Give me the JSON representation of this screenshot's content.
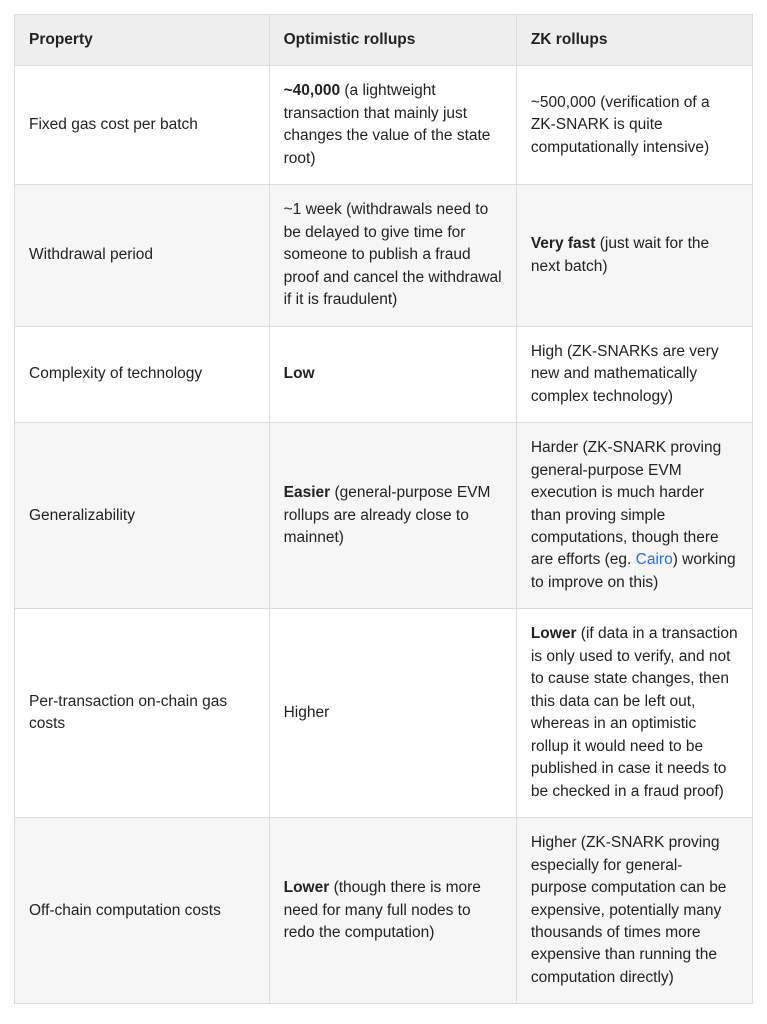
{
  "table": {
    "type": "table",
    "columns": [
      {
        "key": "property",
        "label": "Property",
        "width_pct": 34.5
      },
      {
        "key": "optimistic",
        "label": "Optimistic rollups",
        "width_pct": 33.5
      },
      {
        "key": "zk",
        "label": "ZK rollups",
        "width_pct": 32
      }
    ],
    "header_bg": "#eeeeee",
    "row_bg_odd": "#ffffff",
    "row_bg_even": "#f6f6f6",
    "border_color": "#dcdcdc",
    "text_color": "#222222",
    "link_color": "#1a73e8",
    "font_size_pt": 12,
    "rows": [
      {
        "property": "Fixed gas cost per batch",
        "optimistic_bold": "~40,000",
        "optimistic_rest": " (a lightweight transaction that mainly just changes the value of the state root)",
        "zk_bold": "",
        "zk_rest": "~500,000 (verification of a ZK-SNARK is quite computationally intensive)"
      },
      {
        "property": "Withdrawal period",
        "optimistic_bold": "",
        "optimistic_rest": "~1 week (withdrawals need to be delayed to give time for someone to publish a fraud proof and cancel the withdrawal if it is fraudulent)",
        "zk_bold": "Very fast",
        "zk_rest": " (just wait for the next batch)"
      },
      {
        "property": "Complexity of technology",
        "optimistic_bold": "Low",
        "optimistic_rest": "",
        "zk_bold": "",
        "zk_rest": "High (ZK-SNARKs are very new and mathematically complex technology)"
      },
      {
        "property": "Generalizability",
        "optimistic_bold": "Easier",
        "optimistic_rest": " (general-purpose EVM rollups are already close to mainnet)",
        "zk_pre": "Harder (ZK-SNARK proving general-purpose EVM execution is much harder than proving simple computations, though there are efforts (eg. ",
        "zk_link_text": "Cairo",
        "zk_post": ") working to improve on this)"
      },
      {
        "property": "Per-transaction on-chain gas costs",
        "optimistic_bold": "",
        "optimistic_rest": "Higher",
        "zk_bold": "Lower",
        "zk_rest": " (if data in a transaction is only used to verify, and not to cause state changes, then this data can be left out, whereas in an optimistic rollup it would need to be published in case it needs to be checked in a fraud proof)"
      },
      {
        "property": "Off-chain computation costs",
        "optimistic_bold": "Lower",
        "optimistic_rest": " (though there is more need for many full nodes to redo the computation)",
        "zk_bold": "",
        "zk_rest": "Higher (ZK-SNARK proving especially for general-purpose computation can be expensive, potentially many thousands of times more expensive than running the computation directly)"
      }
    ]
  }
}
